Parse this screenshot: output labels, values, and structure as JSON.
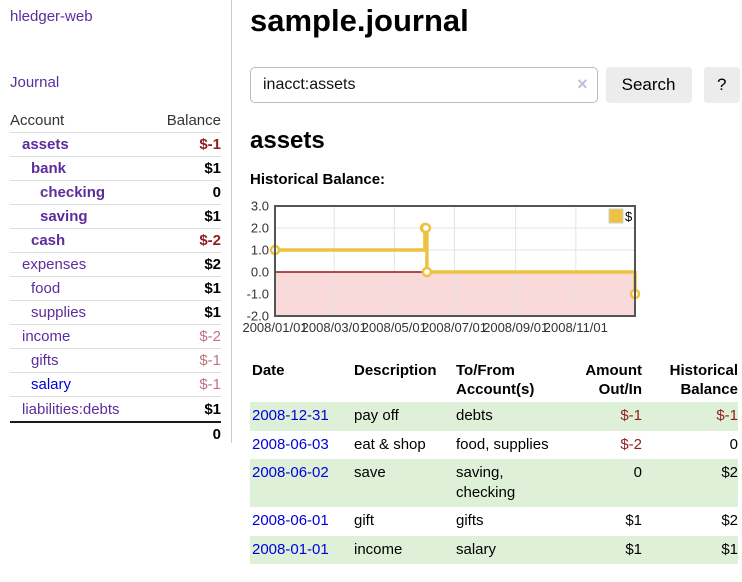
{
  "brand": "hledger-web",
  "nav": {
    "journal_label": "Journal"
  },
  "sidebar": {
    "account_header": "Account",
    "balance_header": "Balance",
    "accounts": [
      {
        "name": "assets",
        "indent": 1,
        "bold": true,
        "balance": "$-1",
        "balance_style": "neg-strong",
        "link_style": "purple"
      },
      {
        "name": "bank",
        "indent": 2,
        "bold": true,
        "balance": "$1",
        "balance_style": "pos",
        "link_style": "purple"
      },
      {
        "name": "checking",
        "indent": 3,
        "bold": true,
        "balance": "0",
        "balance_style": "pos",
        "link_style": "purple"
      },
      {
        "name": "saving",
        "indent": 3,
        "bold": true,
        "balance": "$1",
        "balance_style": "pos",
        "link_style": "purple"
      },
      {
        "name": "cash",
        "indent": 2,
        "bold": true,
        "balance": "$-2",
        "balance_style": "neg-strong",
        "link_style": "purple"
      },
      {
        "name": "expenses",
        "indent": 1,
        "bold": false,
        "balance": "$2",
        "balance_style": "pos",
        "link_style": "purple"
      },
      {
        "name": "food",
        "indent": 2,
        "bold": false,
        "balance": "$1",
        "balance_style": "pos",
        "link_style": "purple"
      },
      {
        "name": "supplies",
        "indent": 2,
        "bold": false,
        "balance": "$1",
        "balance_style": "pos",
        "link_style": "purple"
      },
      {
        "name": "income",
        "indent": 1,
        "bold": false,
        "balance": "$-2",
        "balance_style": "neg-soft",
        "link_style": "purple"
      },
      {
        "name": "gifts",
        "indent": 2,
        "bold": false,
        "balance": "$-1",
        "balance_style": "neg-soft",
        "link_style": "purple"
      },
      {
        "name": "salary",
        "indent": 2,
        "bold": false,
        "balance": "$-1",
        "balance_style": "neg-soft",
        "link_style": "blue"
      },
      {
        "name": "liabilities:debts",
        "indent": 1,
        "bold": false,
        "balance": "$1",
        "balance_style": "pos",
        "link_style": "purple"
      }
    ],
    "total": "0"
  },
  "main": {
    "title": "sample.journal",
    "search": {
      "value": "inacct:assets",
      "clear_label": "×",
      "search_button": "Search",
      "help_button": "?"
    },
    "account_heading": "assets",
    "chart_title": "Historical Balance:"
  },
  "chart_data": {
    "type": "line",
    "steps": true,
    "title": "Historical Balance:",
    "series": [
      {
        "name": "$",
        "color": "#edc240",
        "points": [
          [
            "2008-01-01",
            1
          ],
          [
            "2008-06-01",
            2
          ],
          [
            "2008-06-02",
            2
          ],
          [
            "2008-06-03",
            0
          ],
          [
            "2008-12-31",
            -1
          ]
        ]
      }
    ],
    "x_range": [
      "2008-01-01",
      "2008-12-31"
    ],
    "ylim": [
      -2,
      3
    ],
    "x_ticks": [
      {
        "t": "2008-01-01",
        "label": "2008/01/01"
      },
      {
        "t": "2008-03-01",
        "label": "2008/03/01"
      },
      {
        "t": "2008-05-01",
        "label": "2008/05/01"
      },
      {
        "t": "2008-07-01",
        "label": "2008/07/01"
      },
      {
        "t": "2008-09-01",
        "label": "2008/09/01"
      },
      {
        "t": "2008-11-01",
        "label": "2008/11/01"
      }
    ],
    "y_ticks": [
      {
        "v": 3,
        "label": "3.0"
      },
      {
        "v": 2,
        "label": "2.0"
      },
      {
        "v": 1,
        "label": "1.0"
      },
      {
        "v": 0,
        "label": "0.0"
      },
      {
        "v": -1,
        "label": "-1.0"
      },
      {
        "v": -2,
        "label": "-2.0"
      }
    ],
    "grid": true,
    "legend": {
      "label": "$",
      "position": "top-right"
    },
    "negative_fill_color": "#f9d9d9",
    "zero_line_color": "#9b1414"
  },
  "register": {
    "sort_column": "Date",
    "sort_direction": "ascending",
    "headers": [
      {
        "lines": [
          "Date"
        ],
        "align": "left",
        "sortable": true
      },
      {
        "lines": [
          "Description"
        ],
        "align": "left"
      },
      {
        "lines": [
          "To/From",
          "Account(s)"
        ],
        "align": "left"
      },
      {
        "lines": [
          "Amount",
          "Out/In"
        ],
        "align": "right"
      },
      {
        "lines": [
          "Historical",
          "Balance"
        ],
        "align": "right"
      }
    ],
    "rows": [
      {
        "date": "2008-12-31",
        "description": "pay off",
        "accounts_lines": [
          "debts"
        ],
        "amount": "$-1",
        "amount_neg": true,
        "balance": "$-1",
        "balance_neg": true,
        "shaded": true
      },
      {
        "date": "2008-06-03",
        "description": "eat & shop",
        "accounts_lines": [
          "food, supplies"
        ],
        "amount": "$-2",
        "amount_neg": true,
        "balance": "0",
        "balance_neg": false,
        "shaded": false
      },
      {
        "date": "2008-06-02",
        "description": "save",
        "accounts_lines": [
          "saving,",
          "checking"
        ],
        "amount": "0",
        "amount_neg": false,
        "balance": "$2",
        "balance_neg": false,
        "shaded": true
      },
      {
        "date": "2008-06-01",
        "description": "gift",
        "accounts_lines": [
          "gifts"
        ],
        "amount": "$1",
        "amount_neg": false,
        "balance": "$2",
        "balance_neg": false,
        "shaded": false
      },
      {
        "date": "2008-01-01",
        "description": "income",
        "accounts_lines": [
          "salary"
        ],
        "amount": "$1",
        "amount_neg": false,
        "balance": "$1",
        "balance_neg": false,
        "shaded": true
      }
    ]
  },
  "colors": {
    "purple_link": "#5c2d9c",
    "blue_link": "#0000dd",
    "negative_strong": "#8f1d1d",
    "negative_soft": "#c0737f",
    "row_green": "#dff0d8",
    "chart_gold": "#edc240",
    "chart_negative_fill": "#f9d9d9",
    "chart_zero_line": "#9b1414"
  }
}
